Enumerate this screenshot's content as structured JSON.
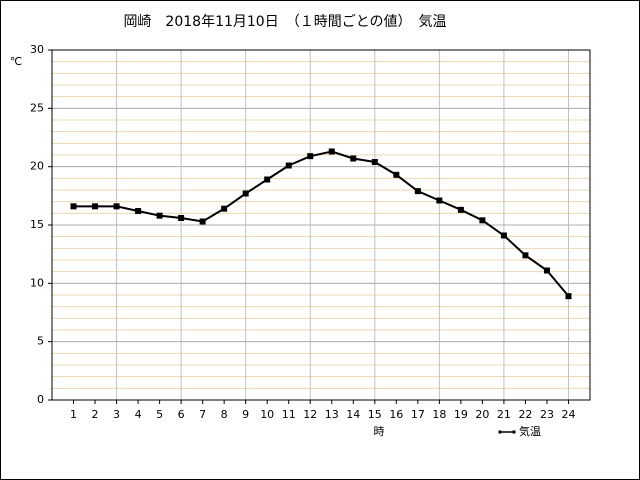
{
  "chart_data": {
    "type": "line",
    "title": "岡崎　2018年11月10日　（１時間ごとの値）　気温",
    "y_label": "℃",
    "x_label": "時",
    "x": [
      1,
      2,
      3,
      4,
      5,
      6,
      7,
      8,
      9,
      10,
      11,
      12,
      13,
      14,
      15,
      16,
      17,
      18,
      19,
      20,
      21,
      22,
      23,
      24
    ],
    "series": [
      {
        "name": "気温",
        "color": "#000000",
        "values": [
          16.6,
          16.6,
          16.6,
          16.2,
          15.8,
          15.6,
          15.3,
          16.4,
          17.7,
          18.9,
          20.1,
          20.9,
          21.3,
          20.7,
          20.4,
          19.3,
          17.9,
          17.1,
          16.3,
          15.4,
          14.1,
          12.4,
          11.1,
          8.9
        ]
      }
    ],
    "xlim": [
      0,
      25
    ],
    "xticks": [
      1,
      2,
      3,
      4,
      5,
      6,
      7,
      8,
      9,
      10,
      11,
      12,
      13,
      14,
      15,
      16,
      17,
      18,
      19,
      20,
      21,
      22,
      23,
      24
    ],
    "ylim": [
      0,
      30
    ],
    "yticks": [
      0,
      5,
      10,
      15,
      20,
      25,
      30
    ],
    "grid": true,
    "minor_grid_step": 1,
    "x_grid_step": 3,
    "legend": "bottom-right"
  }
}
